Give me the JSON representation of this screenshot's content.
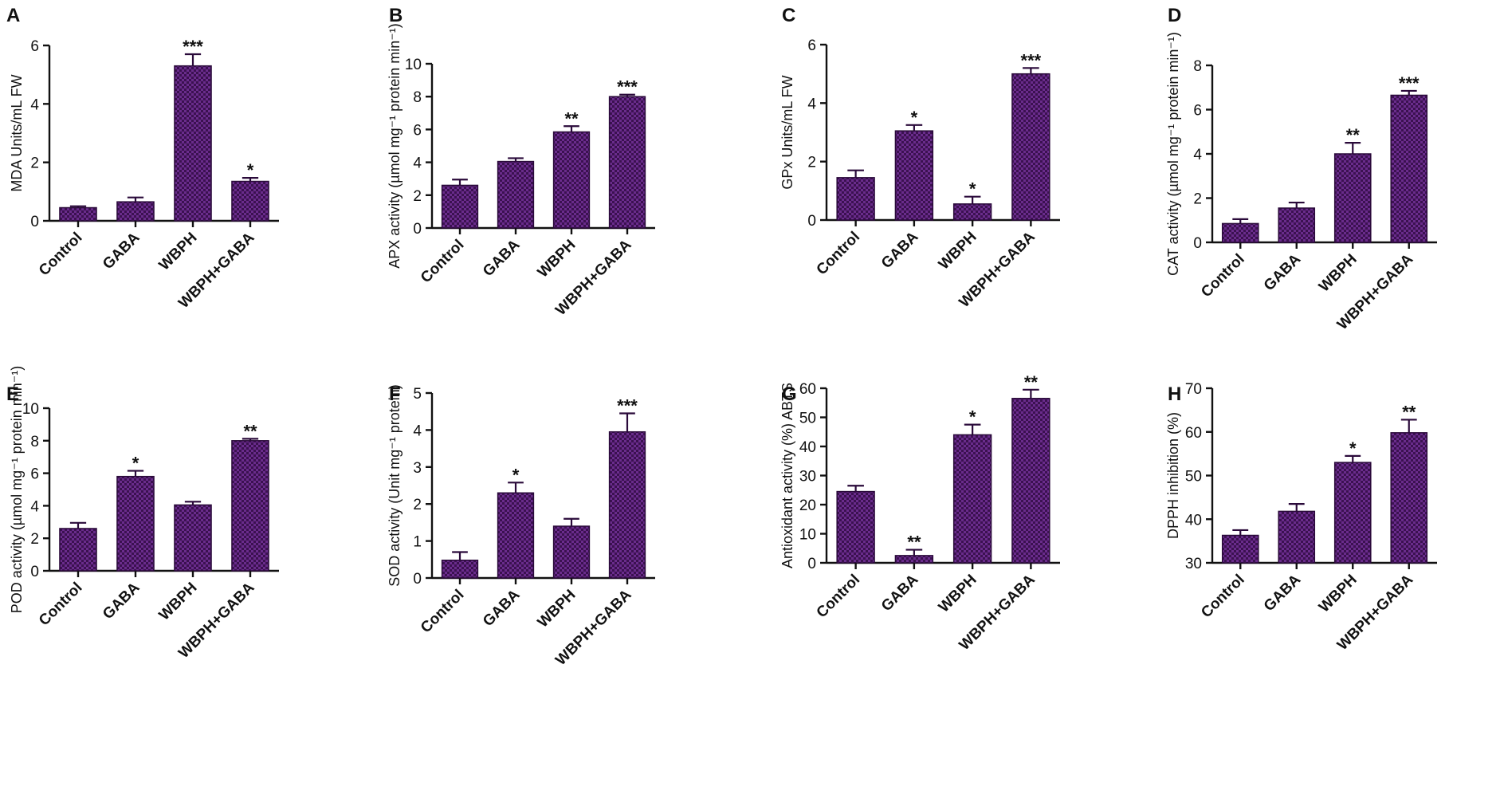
{
  "colors": {
    "bar_fill": "#6a2c8c",
    "bar_pattern": "#3b1150",
    "axis": "#111111"
  },
  "chart_data": [
    {
      "panel": "A",
      "type": "bar",
      "categories": [
        "Control",
        "GABA",
        "WBPH",
        "WBPH+GABA"
      ],
      "values": [
        0.45,
        0.65,
        5.3,
        1.35
      ],
      "errors": [
        0.05,
        0.15,
        0.4,
        0.12
      ],
      "significance": [
        "",
        "",
        "***",
        "*"
      ],
      "ylabel": "MDA Units/mL FW",
      "ylim": [
        0,
        6
      ],
      "yticks": [
        "0",
        "2",
        "4",
        "6"
      ]
    },
    {
      "panel": "B",
      "type": "bar",
      "categories": [
        "Control",
        "GABA",
        "WBPH",
        "WBPH+GABA"
      ],
      "values": [
        2.6,
        4.05,
        5.85,
        8.0
      ],
      "errors": [
        0.35,
        0.2,
        0.35,
        0.12
      ],
      "significance": [
        "",
        "",
        "**",
        "***"
      ],
      "ylabel": "APX activity (µmol mg⁻¹ protein min⁻¹)",
      "ylim": [
        0,
        10
      ],
      "yticks": [
        "0",
        "2",
        "4",
        "6",
        "8",
        "10"
      ]
    },
    {
      "panel": "C",
      "type": "bar",
      "categories": [
        "Control",
        "GABA",
        "WBPH",
        "WBPH+GABA"
      ],
      "values": [
        1.45,
        3.05,
        0.55,
        5.0
      ],
      "errors": [
        0.25,
        0.2,
        0.25,
        0.2
      ],
      "significance": [
        "",
        "*",
        "*",
        "***"
      ],
      "ylabel": "GPx Units/mL FW",
      "ylim": [
        0,
        6
      ],
      "yticks": [
        "0",
        "2",
        "4",
        "6"
      ]
    },
    {
      "panel": "D",
      "type": "bar",
      "categories": [
        "Control",
        "GABA",
        "WBPH",
        "WBPH+GABA"
      ],
      "values": [
        0.85,
        1.55,
        4.0,
        6.65
      ],
      "errors": [
        0.2,
        0.25,
        0.5,
        0.2
      ],
      "significance": [
        "",
        "",
        "**",
        "***"
      ],
      "ylabel": "CAT activity (µmol mg⁻¹ protein min⁻¹)",
      "ylim": [
        0,
        8
      ],
      "yticks": [
        "0",
        "2",
        "4",
        "6",
        "8"
      ]
    },
    {
      "panel": "E",
      "type": "bar",
      "categories": [
        "Control",
        "GABA",
        "WBPH",
        "WBPH+GABA"
      ],
      "values": [
        2.6,
        5.8,
        4.05,
        8.0
      ],
      "errors": [
        0.35,
        0.35,
        0.2,
        0.12
      ],
      "significance": [
        "",
        "*",
        "",
        "**"
      ],
      "ylabel": "POD activity (µmol mg⁻¹ protein min⁻¹)",
      "ylim": [
        0,
        10
      ],
      "yticks": [
        "0",
        "2",
        "4",
        "6",
        "8",
        "10"
      ]
    },
    {
      "panel": "F",
      "type": "bar",
      "categories": [
        "Control",
        "GABA",
        "WBPH",
        "WBPH+GABA"
      ],
      "values": [
        0.48,
        2.3,
        1.4,
        3.95
      ],
      "errors": [
        0.22,
        0.28,
        0.2,
        0.5
      ],
      "significance": [
        "",
        "*",
        "",
        "***"
      ],
      "ylabel": "SOD activity (Unit mg⁻¹ protein)",
      "ylim": [
        0,
        5
      ],
      "yticks": [
        "0",
        "1",
        "2",
        "3",
        "4",
        "5"
      ]
    },
    {
      "panel": "G",
      "type": "bar",
      "categories": [
        "Control",
        "GABA",
        "WBPH",
        "WBPH+GABA"
      ],
      "values": [
        24.5,
        2.5,
        44.0,
        56.5
      ],
      "errors": [
        2.0,
        2.0,
        3.5,
        3.0
      ],
      "significance": [
        "",
        "**",
        "*",
        "**"
      ],
      "ylabel": "Antioxidant activity (%) ABTS",
      "ylim": [
        0,
        60
      ],
      "yticks": [
        "0",
        "10",
        "20",
        "30",
        "40",
        "50",
        "60"
      ]
    },
    {
      "panel": "H",
      "type": "bar",
      "categories": [
        "Control",
        "GABA",
        "WBPH",
        "WBPH+GABA"
      ],
      "values": [
        36.3,
        41.8,
        53.0,
        59.8
      ],
      "errors": [
        1.2,
        1.7,
        1.5,
        3.0
      ],
      "significance": [
        "",
        "",
        "*",
        "**"
      ],
      "ylabel": "DPPH inhibition (%)",
      "ylim": [
        30,
        70
      ],
      "yticks": [
        "30",
        "40",
        "50",
        "60",
        "70"
      ]
    }
  ]
}
